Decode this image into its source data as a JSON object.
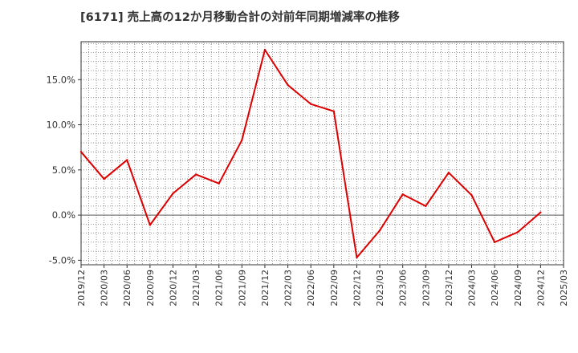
{
  "title": "[6171]  売上高の12か月移動合計の対前年同期増減率の推移",
  "chart_data": {
    "type": "line",
    "title": "[6171]  売上高の12か月移動合計の対前年同期増減率の推移",
    "xlabel": "",
    "ylabel": "",
    "ylim": [
      -5.5,
      19.2
    ],
    "yticks": [
      -5.0,
      0.0,
      5.0,
      10.0,
      15.0
    ],
    "ytick_labels": [
      "-5.0%",
      "0.0%",
      "5.0%",
      "10.0%",
      "15.0%"
    ],
    "xtick_labels": [
      "2019/12",
      "2020/03",
      "2020/06",
      "2020/09",
      "2020/12",
      "2021/03",
      "2021/06",
      "2021/09",
      "2021/12",
      "2022/03",
      "2022/06",
      "2022/09",
      "2022/12",
      "2023/03",
      "2023/06",
      "2023/09",
      "2023/12",
      "2024/03",
      "2024/06",
      "2024/09",
      "2024/12",
      "2025/03"
    ],
    "grid": true,
    "line_color": "#dd0000",
    "series": [
      {
        "name": "売上高の12か月移動合計の対前年同期増減率",
        "x": [
          "2019/12",
          "2020/03",
          "2020/06",
          "2020/09",
          "2020/12",
          "2021/03",
          "2021/06",
          "2021/09",
          "2021/12",
          "2022/03",
          "2022/06",
          "2022/09",
          "2022/12",
          "2023/03",
          "2023/06",
          "2023/09",
          "2023/12",
          "2024/03",
          "2024/06",
          "2024/09",
          "2024/12"
        ],
        "values": [
          7.0,
          4.0,
          6.1,
          -1.1,
          2.4,
          4.5,
          3.5,
          8.3,
          18.3,
          14.4,
          12.3,
          11.5,
          -4.7,
          -1.7,
          2.3,
          1.0,
          4.7,
          2.2,
          -3.0,
          -1.9,
          0.3
        ]
      }
    ]
  }
}
